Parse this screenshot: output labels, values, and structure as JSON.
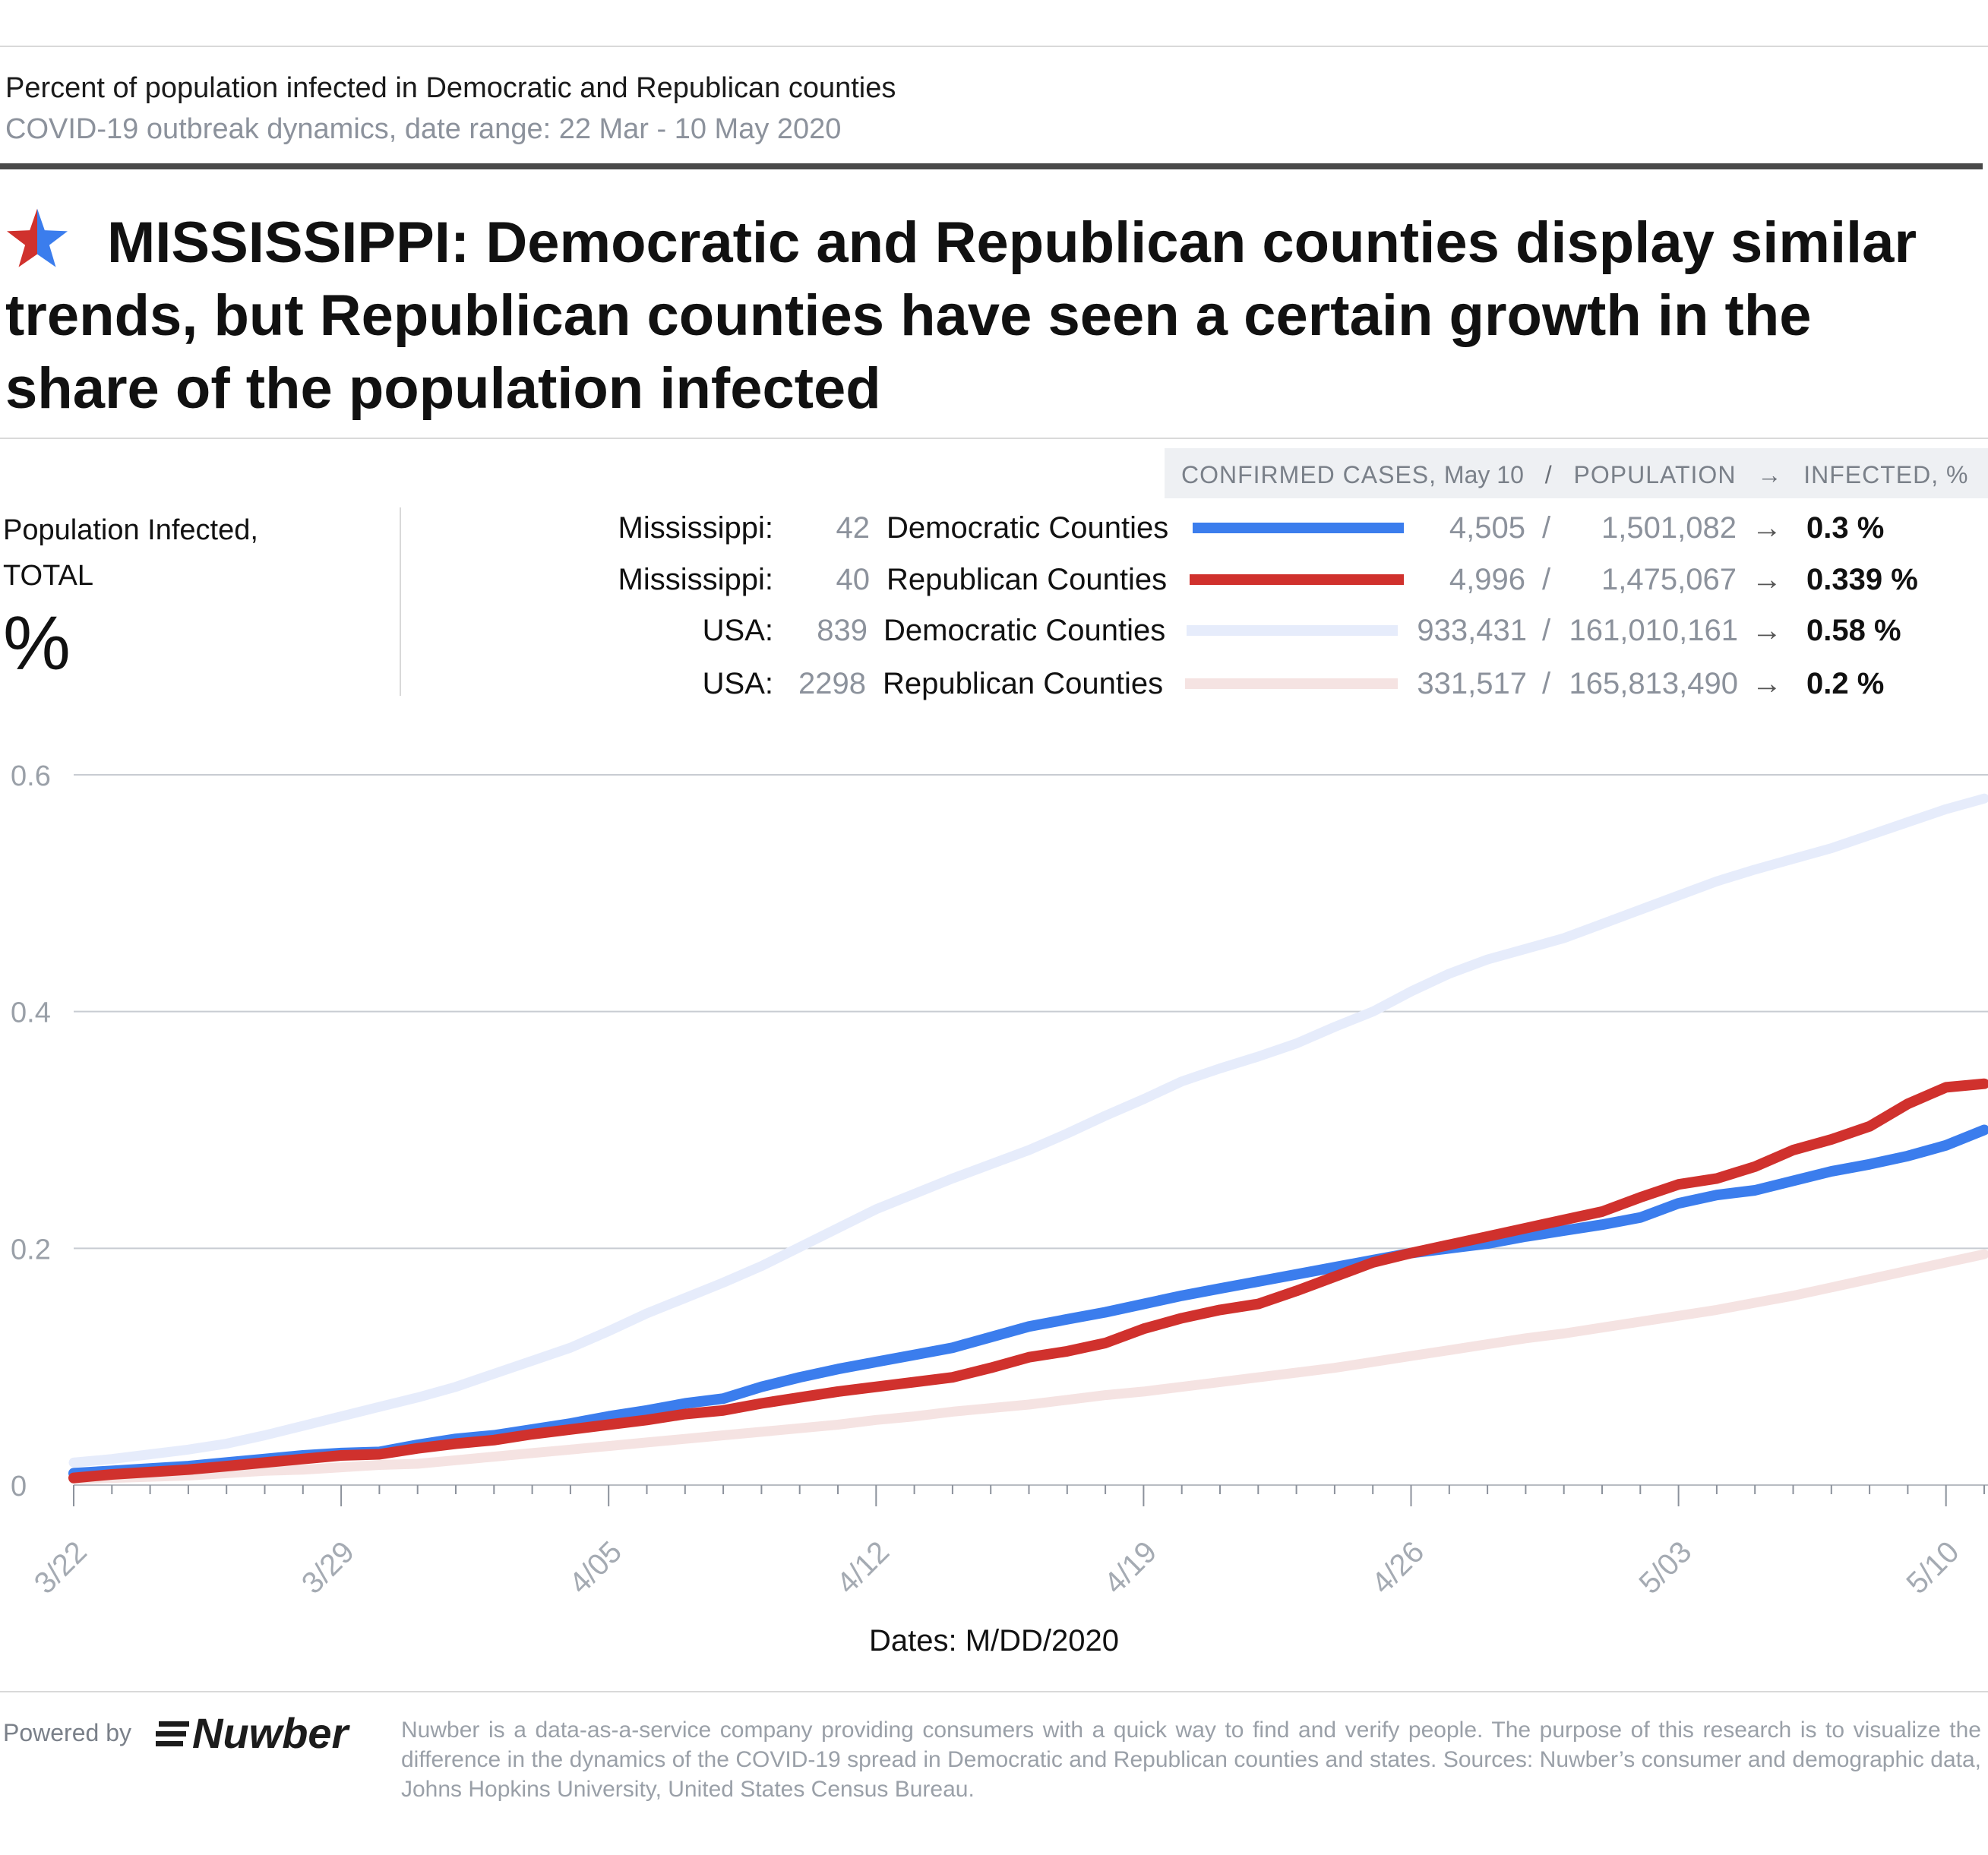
{
  "header": {
    "title": "Percent of population infected in Democratic and Republican counties",
    "subtitle": "COVID-19 outbreak dynamics, date range: 22 Mar - 10 May 2020"
  },
  "headline": "MISSISSIPPI: Democratic and Republican counties display similar trends, but Republican counties have seen a certain growth in the share of the population infected",
  "left_panel": {
    "label_line1": "Population Infected,",
    "label_line2": "TOTAL",
    "unit": "%"
  },
  "legend": {
    "header": {
      "confirmed": "CONFIRMED CASES,",
      "date": "May 10",
      "sep1": "/",
      "population": "POPULATION",
      "arrow": "→",
      "infected": "INFECTED, %"
    },
    "rows": [
      {
        "region": "Mississippi:",
        "count": "42",
        "name": "Democratic Counties",
        "cases": "4,505",
        "slash": "/",
        "population": "1,501,082",
        "arrow": "→",
        "infected": "0.3 %",
        "color": "#3b7ded"
      },
      {
        "region": "Mississippi:",
        "count": "40",
        "name": "Republican Counties",
        "cases": "4,996",
        "slash": "/",
        "population": "1,475,067",
        "arrow": "→",
        "infected": "0.339 %",
        "color": "#d0312d"
      },
      {
        "region": "USA:",
        "count": "839",
        "name": "Democratic Counties",
        "cases": "933,431",
        "slash": "/",
        "population": "161,010,161",
        "arrow": "→",
        "infected": "0.58 %",
        "color": "#e6ecfb"
      },
      {
        "region": "USA:",
        "count": "2298",
        "name": "Republican Counties",
        "cases": "331,517",
        "slash": "/",
        "population": "165,813,490",
        "arrow": "→",
        "infected": "0.2 %",
        "color": "#f5e3e2"
      }
    ]
  },
  "chart_data": {
    "type": "line",
    "xlabel": "Dates: M/DD/2020",
    "ylabel": "",
    "ylim": [
      0,
      0.6
    ],
    "yticks": [
      "0",
      "0.2",
      "0.4",
      "0.6"
    ],
    "xtick_labels": [
      "3/22",
      "3/29",
      "4/05",
      "4/12",
      "4/19",
      "4/26",
      "5/03",
      "5/10"
    ],
    "x_start": "2020-03-22",
    "x_end": "2020-05-10",
    "grid": "horizontal",
    "series": [
      {
        "name": "USA: Democratic Counties",
        "color": "#e6ecfb",
        "values": [
          0.019,
          0.022,
          0.026,
          0.03,
          0.035,
          0.042,
          0.05,
          0.058,
          0.066,
          0.074,
          0.083,
          0.094,
          0.105,
          0.116,
          0.13,
          0.145,
          0.158,
          0.171,
          0.185,
          0.201,
          0.217,
          0.233,
          0.246,
          0.259,
          0.271,
          0.283,
          0.297,
          0.312,
          0.326,
          0.341,
          0.352,
          0.362,
          0.373,
          0.387,
          0.4,
          0.417,
          0.432,
          0.444,
          0.453,
          0.462,
          0.474,
          0.486,
          0.498,
          0.51,
          0.52,
          0.529,
          0.538,
          0.549,
          0.56,
          0.571,
          0.58
        ]
      },
      {
        "name": "USA: Republican Counties",
        "color": "#f5e3e2",
        "values": [
          0.005,
          0.006,
          0.007,
          0.008,
          0.01,
          0.012,
          0.013,
          0.015,
          0.017,
          0.018,
          0.021,
          0.024,
          0.027,
          0.03,
          0.033,
          0.036,
          0.039,
          0.042,
          0.045,
          0.048,
          0.051,
          0.055,
          0.058,
          0.062,
          0.065,
          0.068,
          0.072,
          0.076,
          0.079,
          0.083,
          0.087,
          0.091,
          0.095,
          0.099,
          0.104,
          0.109,
          0.114,
          0.119,
          0.124,
          0.128,
          0.133,
          0.138,
          0.143,
          0.148,
          0.154,
          0.16,
          0.167,
          0.174,
          0.181,
          0.188,
          0.195
        ]
      },
      {
        "name": "Mississippi: Democratic Counties",
        "color": "#3b7ded",
        "values": [
          0.01,
          0.012,
          0.014,
          0.016,
          0.019,
          0.022,
          0.025,
          0.027,
          0.028,
          0.034,
          0.039,
          0.042,
          0.047,
          0.052,
          0.058,
          0.063,
          0.069,
          0.073,
          0.083,
          0.091,
          0.098,
          0.104,
          0.11,
          0.116,
          0.125,
          0.134,
          0.14,
          0.146,
          0.153,
          0.16,
          0.166,
          0.172,
          0.178,
          0.184,
          0.19,
          0.196,
          0.2,
          0.204,
          0.21,
          0.215,
          0.22,
          0.226,
          0.238,
          0.245,
          0.249,
          0.257,
          0.265,
          0.271,
          0.278,
          0.287,
          0.3
        ]
      },
      {
        "name": "Mississippi: Republican Counties",
        "color": "#d0312d",
        "values": [
          0.006,
          0.009,
          0.011,
          0.013,
          0.016,
          0.019,
          0.022,
          0.025,
          0.026,
          0.031,
          0.035,
          0.038,
          0.043,
          0.047,
          0.051,
          0.055,
          0.06,
          0.063,
          0.069,
          0.074,
          0.079,
          0.083,
          0.087,
          0.091,
          0.099,
          0.108,
          0.113,
          0.12,
          0.132,
          0.141,
          0.148,
          0.153,
          0.164,
          0.176,
          0.188,
          0.196,
          0.203,
          0.21,
          0.217,
          0.224,
          0.231,
          0.243,
          0.254,
          0.259,
          0.269,
          0.283,
          0.292,
          0.303,
          0.322,
          0.336,
          0.339
        ]
      }
    ]
  },
  "footer": {
    "powered_by": "Powered by",
    "brand": "Nuwber",
    "note": "Nuwber is a data-as-a-service company providing consumers with a quick way to find and verify people. The purpose of this research is to visualize the difference in the dynamics of the COVID-19 spread in Democratic and Republican counties and states. Sources: Nuwber’s consumer and demographic data, Johns Hopkins University, United States Census Bureau."
  }
}
